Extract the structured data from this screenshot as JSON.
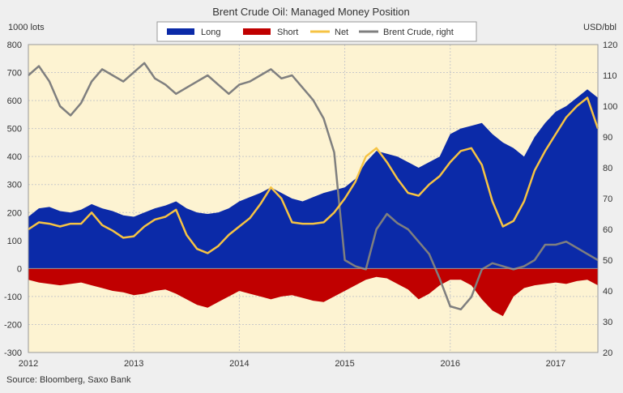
{
  "colors": {
    "background": "#efefef",
    "plot_background": "#fdf3d2",
    "long": "#0b2aa8",
    "short": "#c00000",
    "net": "#f6c343",
    "brent": "#7f7f7f"
  },
  "chart_data": {
    "type": "area",
    "title": "Brent Crude Oil: Managed Money Position",
    "ylabel": "1000 lots",
    "y2label": "USD/bbl",
    "source": "Source: Bloomberg, Saxo Bank",
    "xlim": [
      2012.0,
      2017.4
    ],
    "ylim": [
      -300,
      800
    ],
    "y2lim": [
      20,
      120
    ],
    "x_ticks": [
      "2012",
      "2013",
      "2014",
      "2015",
      "2016",
      "2017"
    ],
    "y_ticks": [
      "800",
      "700",
      "600",
      "500",
      "400",
      "300",
      "200",
      "100",
      "0",
      "-100",
      "-200",
      "-300"
    ],
    "y2_ticks": [
      "120",
      "110",
      "100",
      "90",
      "80",
      "70",
      "60",
      "50",
      "40",
      "30",
      "20"
    ],
    "grid": true,
    "legend_position": "top-center",
    "x": [
      2012.0,
      2012.1,
      2012.2,
      2012.3,
      2012.4,
      2012.5,
      2012.6,
      2012.7,
      2012.8,
      2012.9,
      2013.0,
      2013.1,
      2013.2,
      2013.3,
      2013.4,
      2013.5,
      2013.6,
      2013.7,
      2013.8,
      2013.9,
      2014.0,
      2014.1,
      2014.2,
      2014.3,
      2014.4,
      2014.5,
      2014.6,
      2014.7,
      2014.8,
      2014.9,
      2015.0,
      2015.1,
      2015.2,
      2015.3,
      2015.4,
      2015.5,
      2015.6,
      2015.7,
      2015.8,
      2015.9,
      2016.0,
      2016.1,
      2016.2,
      2016.3,
      2016.4,
      2016.5,
      2016.6,
      2016.7,
      2016.8,
      2016.9,
      2017.0,
      2017.1,
      2017.2,
      2017.3,
      2017.4
    ],
    "series": [
      {
        "name": "Long",
        "axis": "left",
        "values": [
          185,
          215,
          220,
          205,
          200,
          210,
          230,
          215,
          205,
          190,
          185,
          200,
          215,
          225,
          240,
          215,
          200,
          195,
          200,
          215,
          240,
          255,
          270,
          290,
          270,
          250,
          240,
          255,
          270,
          280,
          290,
          320,
          380,
          420,
          410,
          400,
          380,
          360,
          380,
          400,
          480,
          500,
          510,
          520,
          480,
          450,
          430,
          400,
          470,
          520,
          560,
          580,
          610,
          640,
          610
        ]
      },
      {
        "name": "Short",
        "axis": "left",
        "values": [
          -40,
          -50,
          -55,
          -60,
          -55,
          -50,
          -60,
          -70,
          -80,
          -85,
          -95,
          -90,
          -80,
          -75,
          -90,
          -110,
          -130,
          -140,
          -120,
          -100,
          -80,
          -90,
          -100,
          -110,
          -100,
          -95,
          -105,
          -115,
          -120,
          -100,
          -80,
          -60,
          -40,
          -30,
          -35,
          -55,
          -75,
          -110,
          -90,
          -60,
          -40,
          -40,
          -60,
          -110,
          -150,
          -170,
          -100,
          -70,
          -60,
          -55,
          -50,
          -55,
          -45,
          -40,
          -60
        ]
      },
      {
        "name": "Net",
        "axis": "left",
        "values": [
          140,
          165,
          160,
          150,
          160,
          160,
          200,
          155,
          135,
          110,
          115,
          150,
          175,
          185,
          210,
          120,
          70,
          55,
          80,
          120,
          150,
          180,
          230,
          290,
          250,
          165,
          160,
          160,
          165,
          200,
          250,
          310,
          400,
          430,
          380,
          320,
          270,
          260,
          300,
          330,
          380,
          420,
          430,
          370,
          240,
          150,
          170,
          240,
          350,
          420,
          480,
          540,
          580,
          610,
          500
        ]
      },
      {
        "name": "Brent Crude, right",
        "axis": "right",
        "values": [
          110,
          113,
          108,
          100,
          97,
          101,
          108,
          112,
          110,
          108,
          111,
          114,
          109,
          107,
          104,
          106,
          108,
          110,
          107,
          104,
          107,
          108,
          110,
          112,
          109,
          110,
          106,
          102,
          96,
          85,
          50,
          48,
          47,
          60,
          65,
          62,
          60,
          56,
          52,
          44,
          35,
          34,
          38,
          47,
          49,
          48,
          47,
          48,
          50,
          55,
          55,
          56,
          54,
          52,
          50
        ]
      }
    ]
  }
}
